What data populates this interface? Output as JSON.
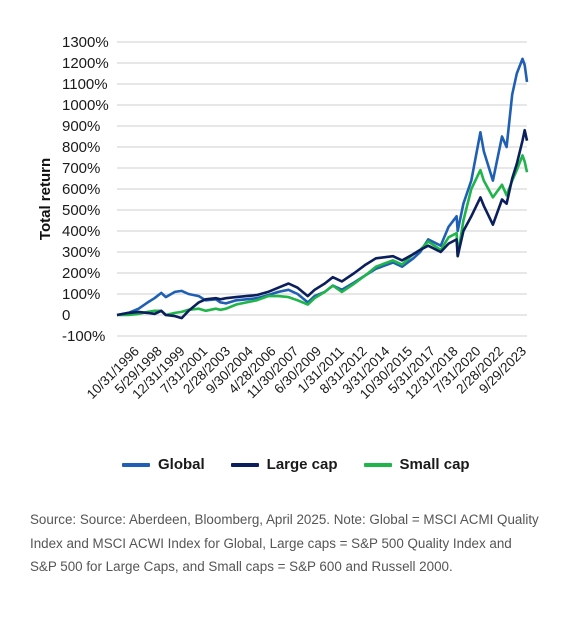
{
  "chart_data": {
    "type": "line",
    "title": "",
    "xlabel": "",
    "ylabel": "Total return",
    "ylim": [
      -100,
      1300
    ],
    "y_ticks": [
      "1300%",
      "1200%",
      "1100%",
      "1000%",
      "900%",
      "800%",
      "700%",
      "600%",
      "500%",
      "400%",
      "300%",
      "200%",
      "100%",
      "0",
      "-100%"
    ],
    "y_tick_values": [
      1300,
      1200,
      1100,
      1000,
      900,
      800,
      700,
      600,
      500,
      400,
      300,
      200,
      100,
      0,
      -100
    ],
    "x_ticks": [
      "10/31/1996",
      "5/29/1998",
      "12/31/1999",
      "7/31/2001",
      "2/28/2003",
      "9/30/2004",
      "4/28/2006",
      "11/30/2007",
      "6/30/2009",
      "1/31/2011",
      "8/31/2012",
      "3/31/2014",
      "10/30/2015",
      "5/31/2017",
      "12/31/2018",
      "7/31/2020",
      "2/28/2022",
      "9/29/2023"
    ],
    "x_range": [
      "1995-03",
      "2025-04"
    ],
    "grid": "horizontal",
    "legend_position": "bottom",
    "series": [
      {
        "name": "Global",
        "color": "#1f5fb4",
        "points": [
          [
            "1995-03",
            0
          ],
          [
            "1996-01",
            10
          ],
          [
            "1996-10",
            30
          ],
          [
            "1997-06",
            60
          ],
          [
            "1997-12",
            80
          ],
          [
            "1998-06",
            105
          ],
          [
            "1998-10",
            85
          ],
          [
            "1999-06",
            110
          ],
          [
            "1999-12",
            115
          ],
          [
            "2000-06",
            100
          ],
          [
            "2001-03",
            90
          ],
          [
            "2001-09",
            70
          ],
          [
            "2002-06",
            75
          ],
          [
            "2002-10",
            60
          ],
          [
            "2003-03",
            55
          ],
          [
            "2003-12",
            70
          ],
          [
            "2004-09",
            75
          ],
          [
            "2005-06",
            80
          ],
          [
            "2006-04",
            95
          ],
          [
            "2007-01",
            110
          ],
          [
            "2007-10",
            120
          ],
          [
            "2008-06",
            100
          ],
          [
            "2009-03",
            60
          ],
          [
            "2009-09",
            90
          ],
          [
            "2010-06",
            110
          ],
          [
            "2011-01",
            140
          ],
          [
            "2011-09",
            120
          ],
          [
            "2012-08",
            155
          ],
          [
            "2013-06",
            190
          ],
          [
            "2014-03",
            220
          ],
          [
            "2015-06",
            250
          ],
          [
            "2016-02",
            230
          ],
          [
            "2016-12",
            270
          ],
          [
            "2017-06",
            300
          ],
          [
            "2018-01",
            360
          ],
          [
            "2018-12",
            330
          ],
          [
            "2019-07",
            420
          ],
          [
            "2020-02",
            470
          ],
          [
            "2020-03",
            400
          ],
          [
            "2020-08",
            530
          ],
          [
            "2021-03",
            640
          ],
          [
            "2021-11",
            870
          ],
          [
            "2022-02",
            780
          ],
          [
            "2022-10",
            640
          ],
          [
            "2023-06",
            850
          ],
          [
            "2023-10",
            800
          ],
          [
            "2024-03",
            1050
          ],
          [
            "2024-07",
            1150
          ],
          [
            "2024-12",
            1220
          ],
          [
            "2025-02",
            1190
          ],
          [
            "2025-04",
            1110
          ]
        ]
      },
      {
        "name": "Large cap",
        "color": "#0b1f5c",
        "points": [
          [
            "1995-03",
            0
          ],
          [
            "1996-01",
            10
          ],
          [
            "1996-10",
            15
          ],
          [
            "1997-06",
            10
          ],
          [
            "1997-12",
            5
          ],
          [
            "1998-06",
            20
          ],
          [
            "1998-10",
            0
          ],
          [
            "1999-06",
            -5
          ],
          [
            "1999-12",
            -15
          ],
          [
            "2000-06",
            20
          ],
          [
            "2001-03",
            60
          ],
          [
            "2001-09",
            75
          ],
          [
            "2002-06",
            80
          ],
          [
            "2002-10",
            75
          ],
          [
            "2003-03",
            80
          ],
          [
            "2003-12",
            85
          ],
          [
            "2004-09",
            90
          ],
          [
            "2005-06",
            95
          ],
          [
            "2006-04",
            110
          ],
          [
            "2007-01",
            130
          ],
          [
            "2007-10",
            150
          ],
          [
            "2008-06",
            130
          ],
          [
            "2009-03",
            90
          ],
          [
            "2009-09",
            120
          ],
          [
            "2010-06",
            150
          ],
          [
            "2011-01",
            180
          ],
          [
            "2011-09",
            160
          ],
          [
            "2012-08",
            200
          ],
          [
            "2013-06",
            240
          ],
          [
            "2014-03",
            270
          ],
          [
            "2015-06",
            280
          ],
          [
            "2016-02",
            260
          ],
          [
            "2016-12",
            290
          ],
          [
            "2017-06",
            310
          ],
          [
            "2018-01",
            330
          ],
          [
            "2018-12",
            300
          ],
          [
            "2019-07",
            340
          ],
          [
            "2020-02",
            360
          ],
          [
            "2020-03",
            280
          ],
          [
            "2020-08",
            400
          ],
          [
            "2021-03",
            470
          ],
          [
            "2021-11",
            560
          ],
          [
            "2022-02",
            520
          ],
          [
            "2022-10",
            430
          ],
          [
            "2023-06",
            550
          ],
          [
            "2023-10",
            530
          ],
          [
            "2024-03",
            650
          ],
          [
            "2024-07",
            720
          ],
          [
            "2024-12",
            830
          ],
          [
            "2025-02",
            880
          ],
          [
            "2025-04",
            830
          ]
        ]
      },
      {
        "name": "Small cap",
        "color": "#1fb54a",
        "points": [
          [
            "1995-03",
            0
          ],
          [
            "1996-01",
            0
          ],
          [
            "1996-10",
            5
          ],
          [
            "1997-06",
            15
          ],
          [
            "1997-12",
            20
          ],
          [
            "1998-06",
            20
          ],
          [
            "1998-10",
            0
          ],
          [
            "1999-06",
            10
          ],
          [
            "1999-12",
            15
          ],
          [
            "2000-06",
            25
          ],
          [
            "2001-03",
            30
          ],
          [
            "2001-09",
            20
          ],
          [
            "2002-06",
            30
          ],
          [
            "2002-10",
            25
          ],
          [
            "2003-03",
            30
          ],
          [
            "2003-12",
            50
          ],
          [
            "2004-09",
            60
          ],
          [
            "2005-06",
            70
          ],
          [
            "2006-04",
            90
          ],
          [
            "2007-01",
            90
          ],
          [
            "2007-10",
            85
          ],
          [
            "2008-06",
            70
          ],
          [
            "2009-03",
            50
          ],
          [
            "2009-09",
            80
          ],
          [
            "2010-06",
            110
          ],
          [
            "2011-01",
            140
          ],
          [
            "2011-09",
            110
          ],
          [
            "2012-08",
            150
          ],
          [
            "2013-06",
            190
          ],
          [
            "2014-03",
            230
          ],
          [
            "2015-06",
            260
          ],
          [
            "2016-02",
            240
          ],
          [
            "2016-12",
            290
          ],
          [
            "2017-06",
            310
          ],
          [
            "2018-01",
            350
          ],
          [
            "2018-12",
            310
          ],
          [
            "2019-07",
            370
          ],
          [
            "2020-02",
            390
          ],
          [
            "2020-03",
            280
          ],
          [
            "2020-08",
            450
          ],
          [
            "2021-03",
            600
          ],
          [
            "2021-11",
            690
          ],
          [
            "2022-02",
            640
          ],
          [
            "2022-10",
            560
          ],
          [
            "2023-06",
            620
          ],
          [
            "2023-10",
            570
          ],
          [
            "2024-03",
            640
          ],
          [
            "2024-07",
            690
          ],
          [
            "2024-12",
            760
          ],
          [
            "2025-02",
            730
          ],
          [
            "2025-04",
            680
          ]
        ]
      }
    ]
  },
  "source_text": "Source: Source: Aberdeen, Bloomberg, April 2025. Note: Global = MSCI ACMI Quality Index and MSCI ACWI Index for Global, Large caps = S&P 500 Quality Index and S&P 500 for Large Caps, and Small caps = S&P 600 and Russell 2000."
}
